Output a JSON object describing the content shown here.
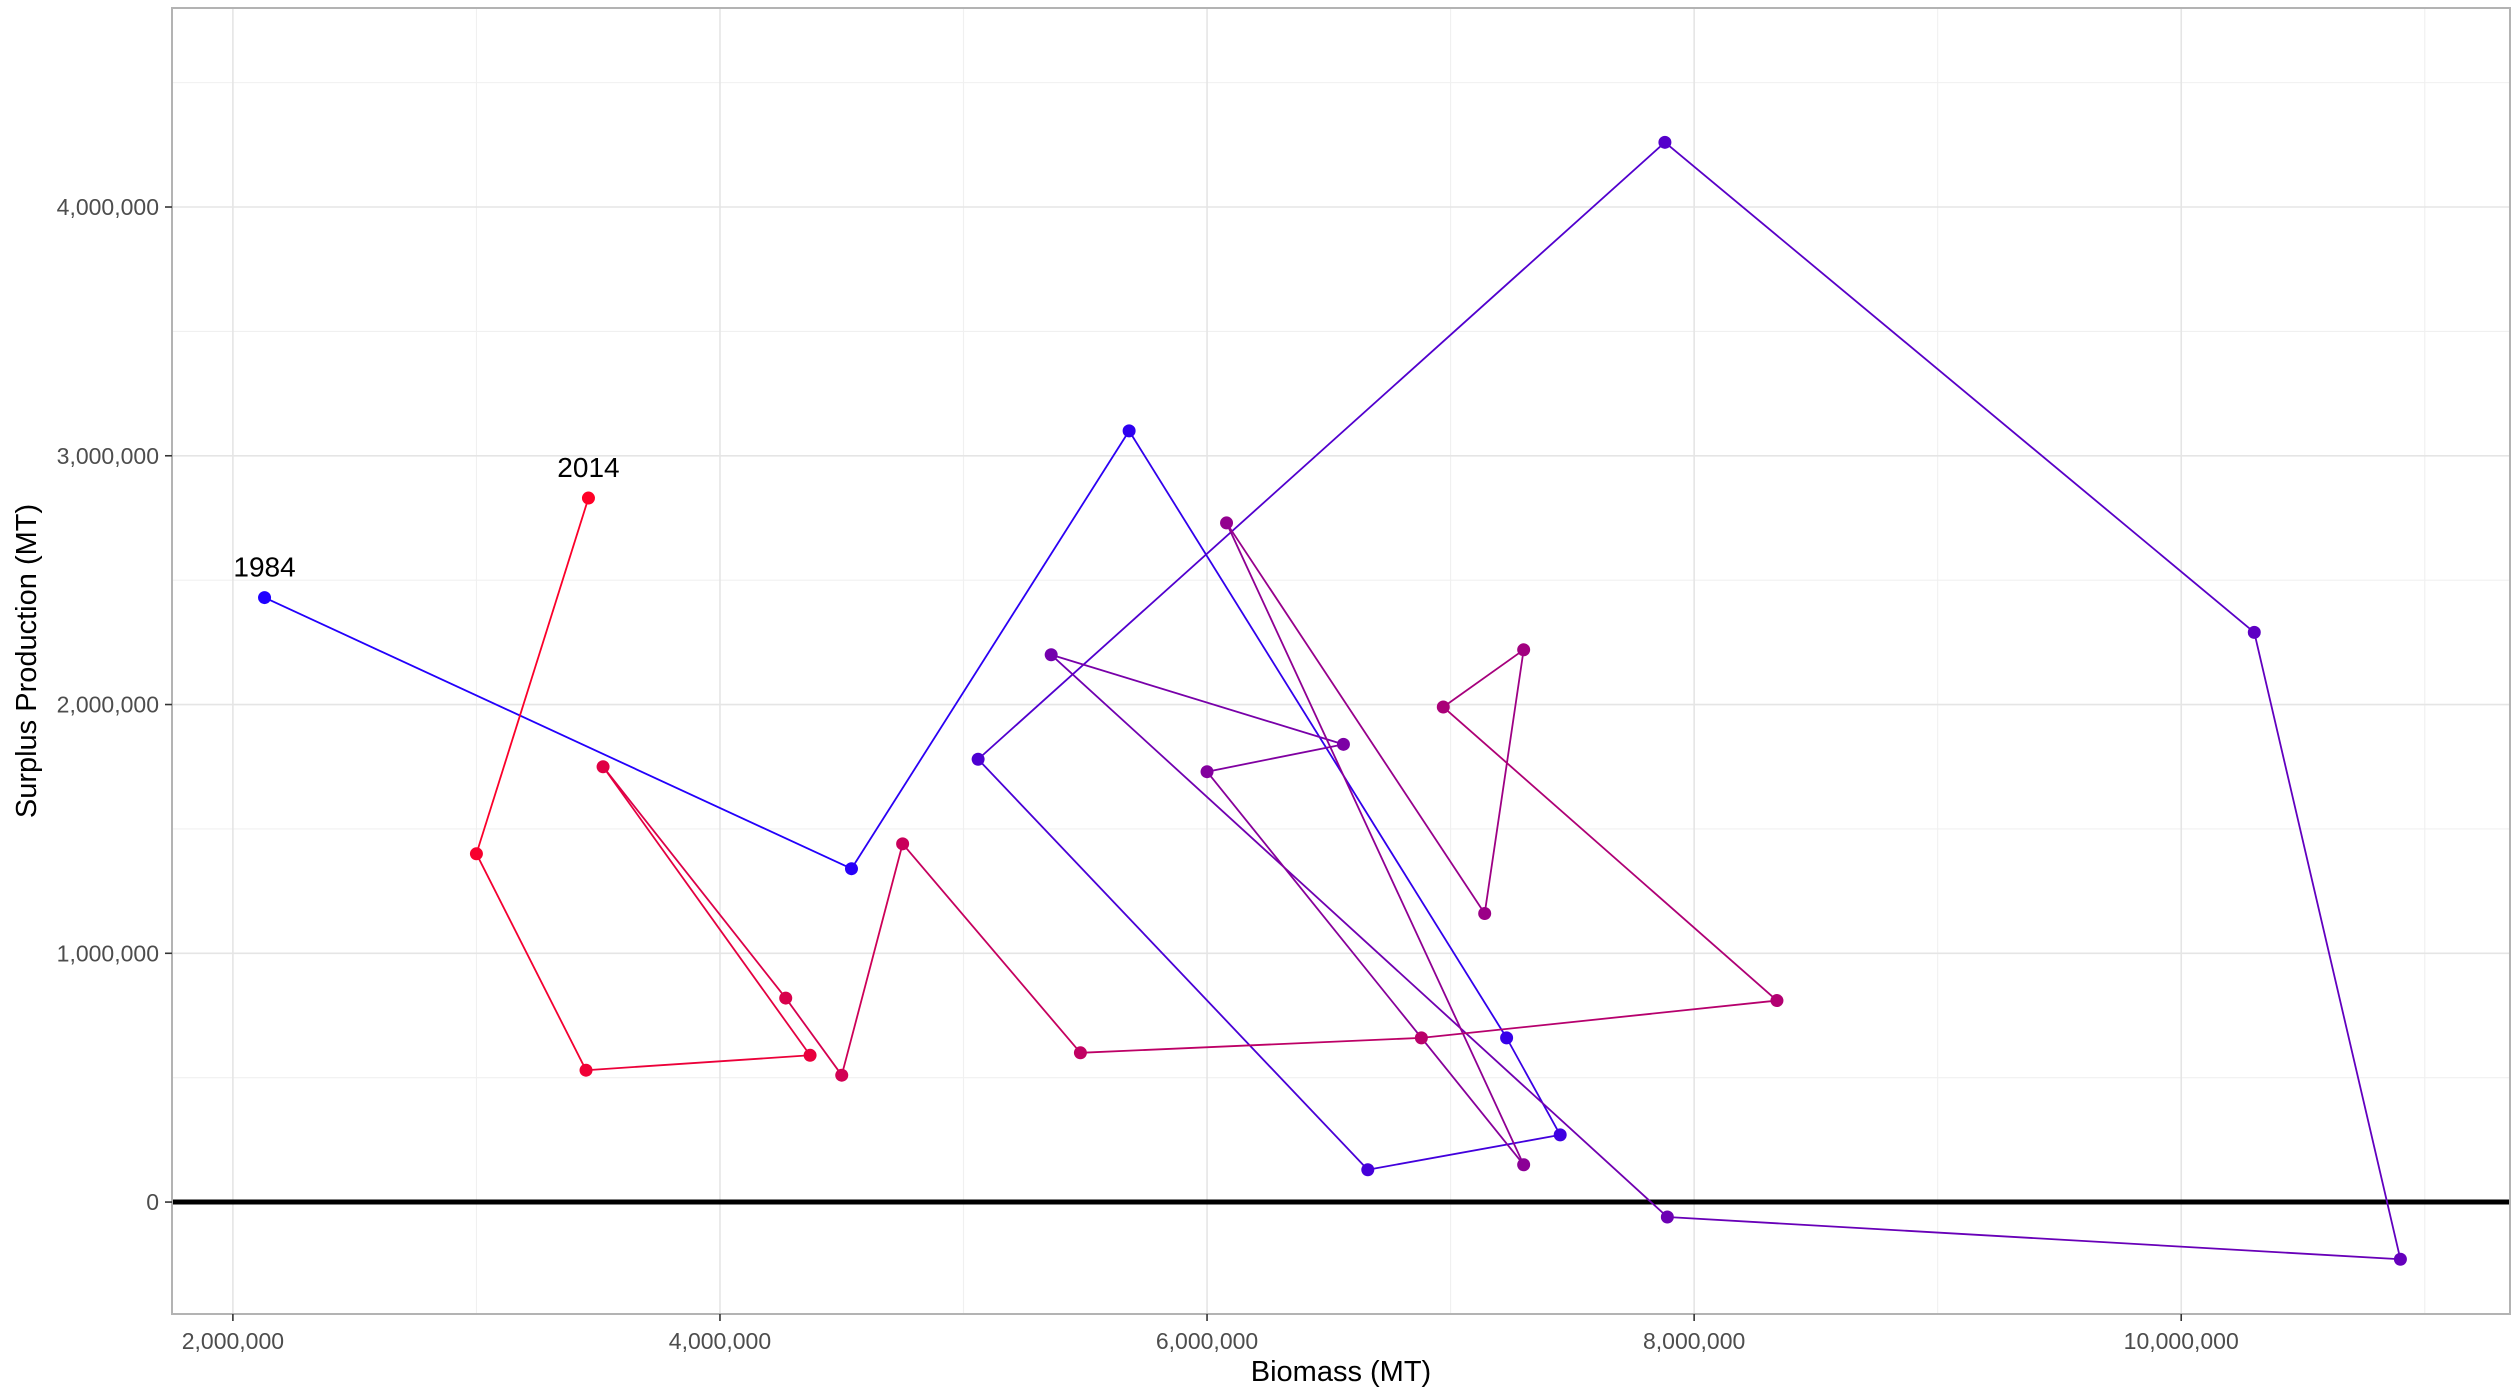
{
  "chart_data": {
    "type": "line",
    "xlabel": "Biomass (MT)",
    "ylabel": "Surplus Production (MT)",
    "xlim": [
      1750000,
      11350000
    ],
    "ylim": [
      -450000,
      4800000
    ],
    "x_ticks": [
      2000000,
      4000000,
      6000000,
      8000000,
      10000000
    ],
    "x_tick_labels": [
      "2,000,000",
      "4,000,000",
      "6,000,000",
      "8,000,000",
      "10,000,000"
    ],
    "y_ticks": [
      0,
      1000000,
      2000000,
      3000000,
      4000000
    ],
    "y_tick_labels": [
      "0",
      "1,000,000",
      "2,000,000",
      "3,000,000",
      "4,000,000"
    ],
    "grid": true,
    "reference_line_y": 0,
    "color_start": "#1f00ff",
    "color_end": "#ff0026",
    "points": [
      {
        "x": 2130000,
        "y": 2430000
      },
      {
        "x": 4540000,
        "y": 1340000
      },
      {
        "x": 5680000,
        "y": 3100000
      },
      {
        "x": 7230000,
        "y": 660000
      },
      {
        "x": 7450000,
        "y": 270000
      },
      {
        "x": 6660000,
        "y": 130000
      },
      {
        "x": 5060000,
        "y": 1780000
      },
      {
        "x": 7880000,
        "y": 4260000
      },
      {
        "x": 10300000,
        "y": 2290000
      },
      {
        "x": 10900000,
        "y": -230000
      },
      {
        "x": 7890000,
        "y": -60000
      },
      {
        "x": 5360000,
        "y": 2200000
      },
      {
        "x": 6560000,
        "y": 1840000
      },
      {
        "x": 6000000,
        "y": 1730000
      },
      {
        "x": 7300000,
        "y": 150000
      },
      {
        "x": 6080000,
        "y": 2730000
      },
      {
        "x": 7140000,
        "y": 1160000
      },
      {
        "x": 7300000,
        "y": 2220000
      },
      {
        "x": 6970000,
        "y": 1990000
      },
      {
        "x": 8340000,
        "y": 810000
      },
      {
        "x": 6880000,
        "y": 660000
      },
      {
        "x": 5480000,
        "y": 600000
      },
      {
        "x": 4750000,
        "y": 1440000
      },
      {
        "x": 4500000,
        "y": 510000
      },
      {
        "x": 4270000,
        "y": 820000
      },
      {
        "x": 3520000,
        "y": 1750000
      },
      {
        "x": 4370000,
        "y": 590000
      },
      {
        "x": 3450000,
        "y": 530000
      },
      {
        "x": 3000000,
        "y": 1400000
      },
      {
        "x": 3460000,
        "y": 2830000
      }
    ],
    "annotations": [
      {
        "text": "1984",
        "point_index": 0
      },
      {
        "text": "2014",
        "point_index": 29
      }
    ]
  }
}
